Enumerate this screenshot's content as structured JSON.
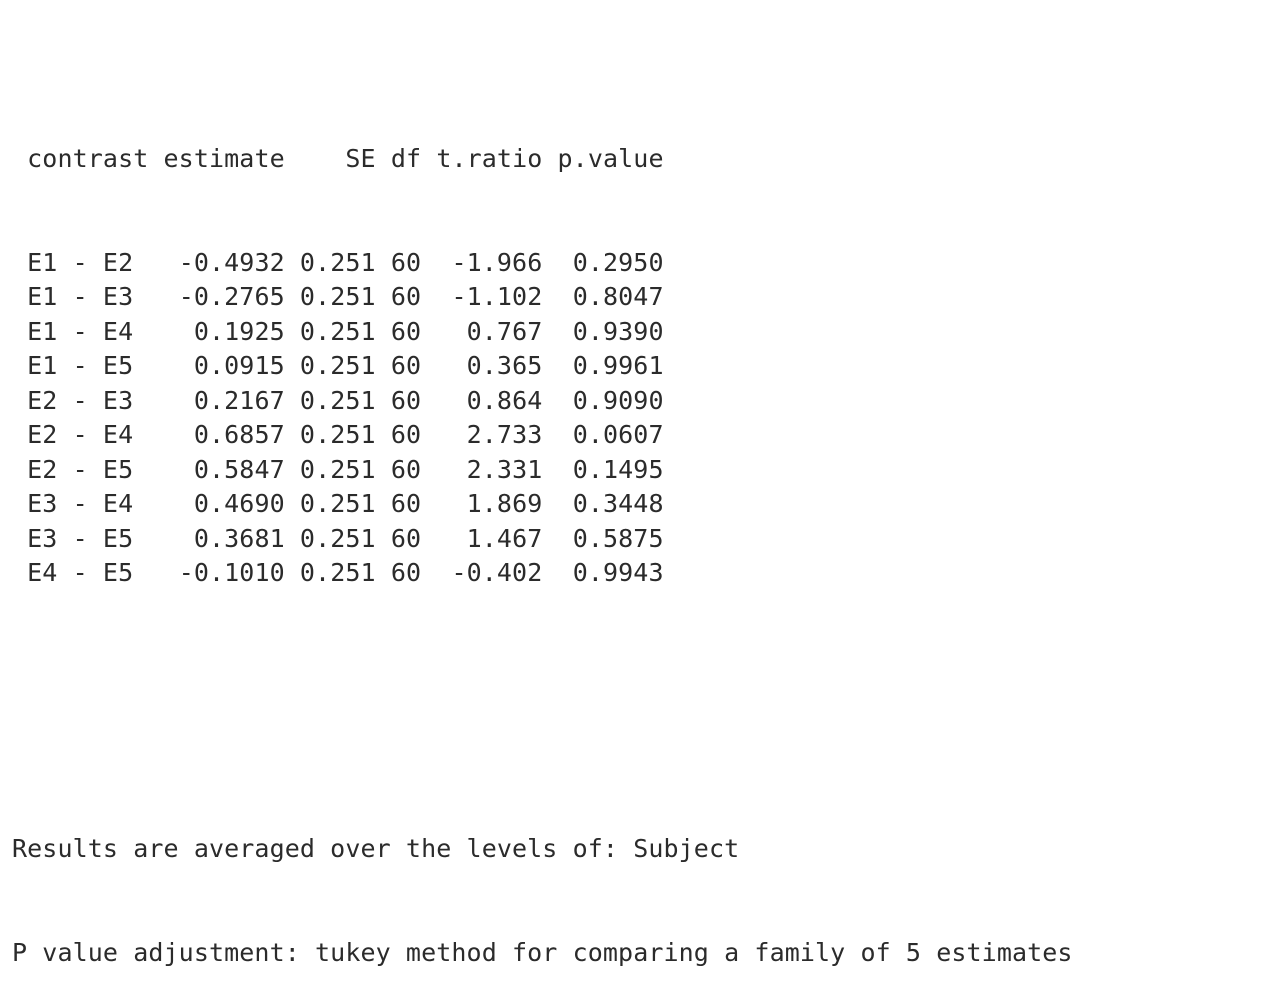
{
  "table": {
    "columns": [
      "contrast",
      "estimate",
      "SE",
      "df",
      "t.ratio",
      "p.value"
    ],
    "rows": [
      {
        "contrast": "E1 - E2",
        "estimate": "-0.4932",
        "SE": "0.251",
        "df": "60",
        "t_ratio": "-1.966",
        "p_value": "0.2950"
      },
      {
        "contrast": "E1 - E3",
        "estimate": "-0.2765",
        "SE": "0.251",
        "df": "60",
        "t_ratio": "-1.102",
        "p_value": "0.8047"
      },
      {
        "contrast": "E1 - E4",
        "estimate": "0.1925",
        "SE": "0.251",
        "df": "60",
        "t_ratio": "0.767",
        "p_value": "0.9390"
      },
      {
        "contrast": "E1 - E5",
        "estimate": "0.0915",
        "SE": "0.251",
        "df": "60",
        "t_ratio": "0.365",
        "p_value": "0.9961"
      },
      {
        "contrast": "E2 - E3",
        "estimate": "0.2167",
        "SE": "0.251",
        "df": "60",
        "t_ratio": "0.864",
        "p_value": "0.9090"
      },
      {
        "contrast": "E2 - E4",
        "estimate": "0.6857",
        "SE": "0.251",
        "df": "60",
        "t_ratio": "2.733",
        "p_value": "0.0607"
      },
      {
        "contrast": "E2 - E5",
        "estimate": "0.5847",
        "SE": "0.251",
        "df": "60",
        "t_ratio": "2.331",
        "p_value": "0.1495"
      },
      {
        "contrast": "E3 - E4",
        "estimate": "0.4690",
        "SE": "0.251",
        "df": "60",
        "t_ratio": "1.869",
        "p_value": "0.3448"
      },
      {
        "contrast": "E3 - E5",
        "estimate": "0.3681",
        "SE": "0.251",
        "df": "60",
        "t_ratio": "1.467",
        "p_value": "0.5875"
      },
      {
        "contrast": "E4 - E5",
        "estimate": "-0.1010",
        "SE": "0.251",
        "df": "60",
        "t_ratio": "-0.402",
        "p_value": "0.9943"
      }
    ]
  },
  "notes": [
    "Results are averaged over the levels of: Subject",
    "P value adjustment: tukey method for comparing a family of 5 estimates"
  ]
}
